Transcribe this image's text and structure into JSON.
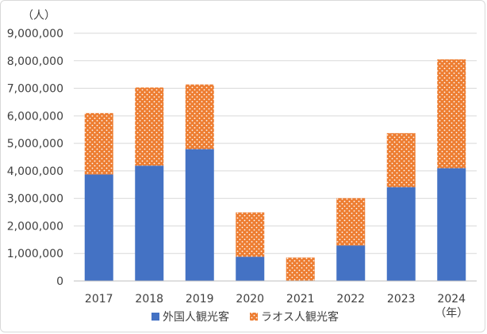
{
  "chart_data": {
    "type": "bar",
    "stacked": true,
    "categories": [
      "2017",
      "2018",
      "2019",
      "2020",
      "2021",
      "2022",
      "2023",
      "2024"
    ],
    "x_unit": "（年）",
    "y_unit": "（人）",
    "ylim": [
      0,
      9000000
    ],
    "y_ticks": [
      {
        "value": 0,
        "label": "0"
      },
      {
        "value": 1000000,
        "label": "1,000,000"
      },
      {
        "value": 2000000,
        "label": "2,000,000"
      },
      {
        "value": 3000000,
        "label": "3,000,000"
      },
      {
        "value": 4000000,
        "label": "4,000,000"
      },
      {
        "value": 5000000,
        "label": "5,000,000"
      },
      {
        "value": 6000000,
        "label": "6,000,000"
      },
      {
        "value": 7000000,
        "label": "7,000,000"
      },
      {
        "value": 8000000,
        "label": "8,000,000"
      },
      {
        "value": 9000000,
        "label": "9,000,000"
      }
    ],
    "grid": true,
    "legend_position": "bottom",
    "series": [
      {
        "name": "外国人観光客",
        "color": "#4472C4",
        "pattern": "solid",
        "values": [
          3870000,
          4190000,
          4790000,
          880000,
          0,
          1290000,
          3410000,
          4100000
        ]
      },
      {
        "name": "ラオス人観光客",
        "color": "#ED7D31",
        "pattern": "dotted",
        "values": [
          2230000,
          2840000,
          2350000,
          1610000,
          850000,
          1720000,
          1960000,
          3950000
        ]
      }
    ]
  }
}
